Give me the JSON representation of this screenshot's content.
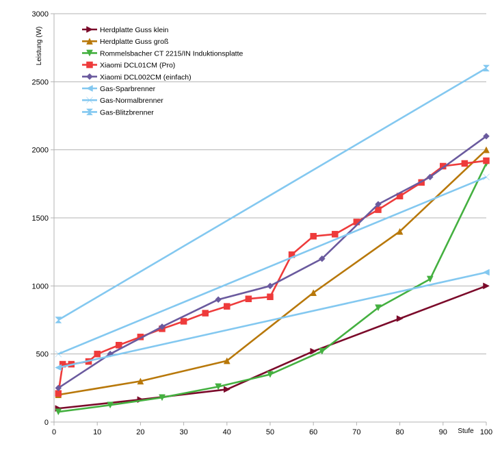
{
  "chart_data": {
    "type": "line",
    "title": "",
    "xlabel": "Stufe",
    "ylabel": "Leistung (W)",
    "xlim": [
      0,
      100
    ],
    "ylim": [
      0,
      3000
    ],
    "x_ticks": [
      0,
      10,
      20,
      30,
      40,
      50,
      60,
      70,
      80,
      90,
      100
    ],
    "y_ticks": [
      0,
      500,
      1000,
      1500,
      2000,
      2500,
      3000
    ],
    "grid": "horizontal",
    "legend_position": "top-left",
    "series": [
      {
        "name": "Herdplatte Guss klein",
        "color": "#7b0a2a",
        "marker": "triangle-right",
        "points": [
          [
            1,
            100
          ],
          [
            20,
            165
          ],
          [
            40,
            240
          ],
          [
            60,
            520
          ],
          [
            80,
            760
          ],
          [
            100,
            1000
          ]
        ]
      },
      {
        "name": "Herdplatte Guss groß",
        "color": "#b8780a",
        "marker": "triangle-up",
        "points": [
          [
            1,
            200
          ],
          [
            20,
            300
          ],
          [
            40,
            450
          ],
          [
            60,
            950
          ],
          [
            80,
            1400
          ],
          [
            100,
            2000
          ]
        ]
      },
      {
        "name": "Rommelsbacher CT 2215/IN Induktionsplatte",
        "color": "#44b040",
        "marker": "triangle-down",
        "points": [
          [
            1,
            75
          ],
          [
            13,
            125
          ],
          [
            25,
            180
          ],
          [
            38,
            260
          ],
          [
            50,
            350
          ],
          [
            62,
            520
          ],
          [
            75,
            840
          ],
          [
            87,
            1050
          ],
          [
            100,
            1900
          ]
        ]
      },
      {
        "name": "Xiaomi DCL01CM (Pro)",
        "color": "#ee3b3b",
        "marker": "square",
        "points": [
          [
            1,
            210
          ],
          [
            2,
            425
          ],
          [
            4,
            425
          ],
          [
            8,
            445
          ],
          [
            10,
            500
          ],
          [
            15,
            565
          ],
          [
            20,
            625
          ],
          [
            25,
            685
          ],
          [
            30,
            740
          ],
          [
            35,
            800
          ],
          [
            40,
            850
          ],
          [
            45,
            905
          ],
          [
            50,
            920
          ],
          [
            55,
            1230
          ],
          [
            60,
            1365
          ],
          [
            65,
            1380
          ],
          [
            70,
            1470
          ],
          [
            75,
            1560
          ],
          [
            80,
            1660
          ],
          [
            85,
            1760
          ],
          [
            90,
            1880
          ],
          [
            95,
            1900
          ],
          [
            100,
            1920
          ]
        ]
      },
      {
        "name": "Xiaomi DCL002CM (einfach)",
        "color": "#6a5a9e",
        "marker": "diamond",
        "points": [
          [
            1,
            250
          ],
          [
            13,
            500
          ],
          [
            25,
            700
          ],
          [
            38,
            900
          ],
          [
            50,
            1000
          ],
          [
            62,
            1200
          ],
          [
            75,
            1600
          ],
          [
            87,
            1800
          ],
          [
            100,
            2100
          ]
        ]
      },
      {
        "name": "Gas-Sparbrenner",
        "color": "#83c8f0",
        "marker": "triangle-left",
        "points": [
          [
            1,
            400
          ],
          [
            100,
            1100
          ]
        ]
      },
      {
        "name": "Gas-Normalbrenner",
        "color": "#83c8f0",
        "marker": "bowtie",
        "points": [
          [
            1,
            500
          ],
          [
            100,
            1800
          ]
        ]
      },
      {
        "name": "Gas-Blitzbrenner",
        "color": "#83c8f0",
        "marker": "hourglass",
        "points": [
          [
            1,
            750
          ],
          [
            100,
            2600
          ]
        ]
      }
    ]
  }
}
